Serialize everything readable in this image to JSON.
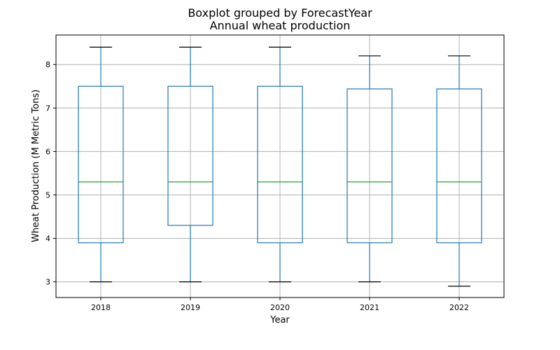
{
  "chart_data": {
    "type": "box",
    "suptitle": "Boxplot grouped by ForecastYear",
    "title": "Annual wheat production",
    "xlabel": "Year",
    "ylabel": "Wheat Production (M Metric Tons)",
    "categories": [
      "2018",
      "2019",
      "2020",
      "2021",
      "2022"
    ],
    "boxes": [
      {
        "category": "2018",
        "whislo": 3.0,
        "q1": 3.9,
        "med": 5.3,
        "q3": 7.5,
        "whishi": 8.4
      },
      {
        "category": "2019",
        "whislo": 3.0,
        "q1": 4.3,
        "med": 5.3,
        "q3": 7.5,
        "whishi": 8.4
      },
      {
        "category": "2020",
        "whislo": 3.0,
        "q1": 3.9,
        "med": 5.3,
        "q3": 7.5,
        "whishi": 8.4
      },
      {
        "category": "2021",
        "whislo": 3.0,
        "q1": 3.9,
        "med": 5.3,
        "q3": 7.44,
        "whishi": 8.2
      },
      {
        "category": "2022",
        "whislo": 2.9,
        "q1": 3.9,
        "med": 5.3,
        "q3": 7.44,
        "whishi": 8.2
      }
    ],
    "ylim": [
      2.64,
      8.68
    ],
    "yticks": [
      3,
      4,
      5,
      6,
      7,
      8
    ],
    "grid": true,
    "colors": {
      "box": "#1f77b4",
      "median": "#2ca02c",
      "cap": "#000000",
      "grid": "#b0b0b0"
    }
  }
}
